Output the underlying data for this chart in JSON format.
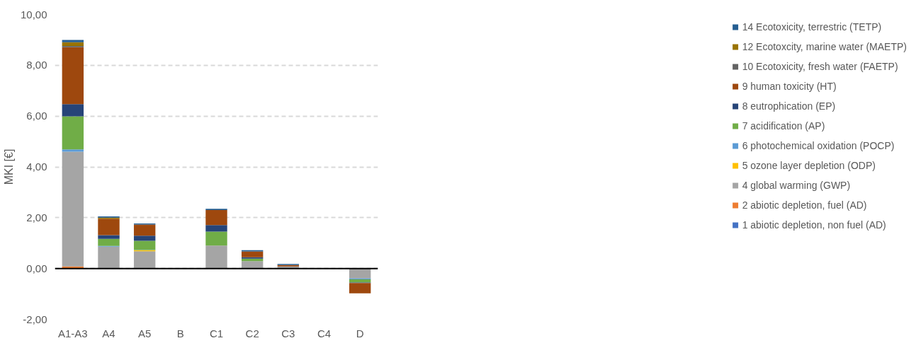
{
  "chart_data": {
    "type": "bar",
    "stacked": true,
    "ylabel": "MKI [€]",
    "categories": [
      "A1-A3",
      "A4",
      "A5",
      "B",
      "C1",
      "C2",
      "C3",
      "C4",
      "D"
    ],
    "ylim": [
      -2,
      10
    ],
    "yticks": [
      {
        "value": -2,
        "label": "-2,00"
      },
      {
        "value": 0,
        "label": "0,00"
      },
      {
        "value": 2,
        "label": "2,00"
      },
      {
        "value": 4,
        "label": "4,00"
      },
      {
        "value": 6,
        "label": "6,00"
      },
      {
        "value": 8,
        "label": "8,00"
      },
      {
        "value": 10,
        "label": "10,00"
      }
    ],
    "grid": "y",
    "legend": "right",
    "series": [
      {
        "name": "1 abiotic depletion, non fuel (AD)",
        "color": "#4472c4",
        "values": [
          0,
          0,
          0,
          0,
          0,
          0,
          0,
          0,
          0
        ]
      },
      {
        "name": "2 abiotic depletion, fuel (AD)",
        "color": "#ed7d31",
        "values": [
          0.08,
          0,
          0,
          0,
          0,
          0,
          0,
          0,
          0
        ]
      },
      {
        "name": "4 global warming (GWP)",
        "color": "#a5a5a5",
        "values": [
          4.52,
          0.86,
          0.68,
          0,
          0.9,
          0.29,
          0.08,
          0,
          -0.39
        ]
      },
      {
        "name": "5 ozone layer depletion (ODP)",
        "color": "#ffc000",
        "values": [
          0,
          0,
          0.04,
          0,
          0,
          0,
          0,
          0,
          0
        ]
      },
      {
        "name": "6 photochemical oxidation (POCP)",
        "color": "#5b9bd5",
        "values": [
          0.09,
          0.03,
          0.01,
          0,
          null,
          0,
          0,
          0,
          -0.04
        ]
      },
      {
        "name": "7 acidification (AP)",
        "color": "#70ad47",
        "values": [
          1.3,
          0.28,
          0.36,
          0,
          0.55,
          0.1,
          null,
          0,
          -0.12
        ]
      },
      {
        "name": "8 eutrophication (EP)",
        "color": "#264478",
        "values": [
          0.48,
          0.14,
          0.2,
          0,
          0.26,
          0.05,
          0,
          0,
          -0.02
        ]
      },
      {
        "name": "9 human toxicity (HT)",
        "color": "#9e480e",
        "values": [
          2.24,
          0.65,
          0.44,
          0,
          0.59,
          0.23,
          0.06,
          0,
          -0.41
        ]
      },
      {
        "name": "10 Ecotoxicity, fresh water (FAETP)",
        "color": "#636363",
        "values": [
          0.05,
          0,
          0,
          0,
          0,
          0,
          0,
          0,
          0
        ]
      },
      {
        "name": "12 Ecotoxcity, marine water (MAETP)",
        "color": "#997300",
        "values": [
          0.15,
          0.04,
          0,
          0,
          0,
          0,
          0,
          0,
          0
        ]
      },
      {
        "name": "14 Ecotoxicity, terrestric (TETP)",
        "color": "#255e91",
        "values": [
          0.09,
          0.05,
          0.04,
          0,
          0.05,
          0.05,
          0.04,
          0.02,
          0
        ]
      }
    ]
  }
}
